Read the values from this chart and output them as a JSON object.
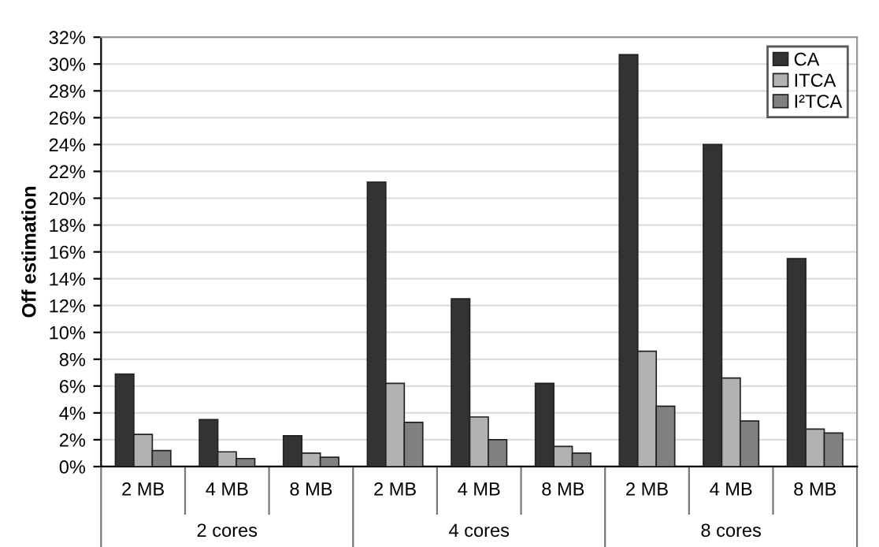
{
  "chart_data": {
    "type": "bar",
    "ylabel": "Off estimation",
    "categories": [
      "2 MB",
      "4 MB",
      "8 MB",
      "2 MB",
      "4 MB",
      "8 MB",
      "2 MB",
      "4 MB",
      "8 MB"
    ],
    "annotations": [
      "2 cores",
      "4 cores",
      "8 cores"
    ],
    "series": [
      {
        "name": "CA",
        "color": "#333333",
        "values": [
          6.9,
          3.5,
          2.3,
          21.2,
          12.5,
          6.2,
          30.7,
          24.0,
          15.5
        ]
      },
      {
        "name": "ITCA",
        "color": "#b2b2b2",
        "values": [
          2.4,
          1.1,
          1.0,
          6.2,
          3.7,
          1.5,
          8.6,
          6.6,
          2.8
        ]
      },
      {
        "name": "I²TCA",
        "color": "#808080",
        "values": [
          1.2,
          0.6,
          0.7,
          3.3,
          2.0,
          1.0,
          4.5,
          3.4,
          2.5
        ]
      }
    ],
    "ylim": [
      0,
      32
    ],
    "yticks": [
      {
        "value": 0,
        "label": "0%"
      },
      {
        "value": 2,
        "label": "2%"
      },
      {
        "value": 4,
        "label": "4%"
      },
      {
        "value": 6,
        "label": "6%"
      },
      {
        "value": 8,
        "label": "8%"
      },
      {
        "value": 10,
        "label": "10%"
      },
      {
        "value": 12,
        "label": "12%"
      },
      {
        "value": 14,
        "label": "14%"
      },
      {
        "value": 16,
        "label": "16%"
      },
      {
        "value": 18,
        "label": "18%"
      },
      {
        "value": 20,
        "label": "20%"
      },
      {
        "value": 22,
        "label": "22%"
      },
      {
        "value": 24,
        "label": "24%"
      },
      {
        "value": 26,
        "label": "26%"
      },
      {
        "value": 28,
        "label": "28%"
      },
      {
        "value": 30,
        "label": "30%"
      },
      {
        "value": 32,
        "label": "32%"
      }
    ],
    "grid": "y",
    "legend": "top right"
  }
}
